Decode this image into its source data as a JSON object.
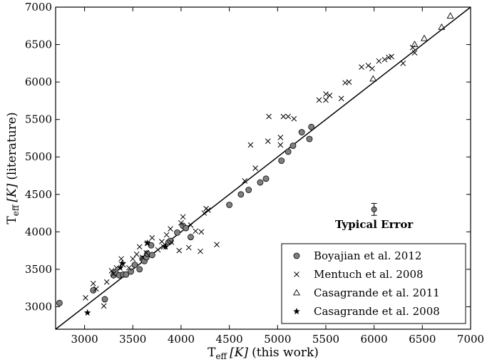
{
  "chart_data": {
    "type": "scatter",
    "xlabel": "T_eff [K] (this work)",
    "ylabel": "T_eff [K] (literature)",
    "xlabel_parts": {
      "T": "T",
      "sub": "eff",
      "unit": "[K]",
      "rest": "(this work)"
    },
    "ylabel_parts": {
      "T": "T",
      "sub": "eff",
      "unit": "[K]",
      "rest": "(literature)"
    },
    "xlim": [
      2700,
      7000
    ],
    "ylim": [
      2700,
      7000
    ],
    "xticks": [
      3000,
      3500,
      4000,
      4500,
      5000,
      5500,
      6000,
      6500,
      7000
    ],
    "yticks": [
      3000,
      3500,
      4000,
      4500,
      5000,
      5500,
      6000,
      6500,
      7000
    ],
    "legend_position": "lower-right",
    "one_to_one_line": true,
    "series": [
      {
        "name": "Boyajian et al. 2012",
        "marker": "circle",
        "color": "#808080",
        "points": [
          [
            2740,
            3050
          ],
          [
            3090,
            3220
          ],
          [
            3210,
            3100
          ],
          [
            3300,
            3420
          ],
          [
            3320,
            3460
          ],
          [
            3360,
            3420
          ],
          [
            3400,
            3430
          ],
          [
            3430,
            3430
          ],
          [
            3480,
            3470
          ],
          [
            3520,
            3560
          ],
          [
            3570,
            3500
          ],
          [
            3600,
            3640
          ],
          [
            3620,
            3610
          ],
          [
            3640,
            3660
          ],
          [
            3650,
            3710
          ],
          [
            3700,
            3690
          ],
          [
            3690,
            3820
          ],
          [
            3870,
            3860
          ],
          [
            3890,
            3880
          ],
          [
            3960,
            3990
          ],
          [
            4020,
            4080
          ],
          [
            4050,
            4050
          ],
          [
            4100,
            3930
          ],
          [
            4500,
            4360
          ],
          [
            4620,
            4500
          ],
          [
            4700,
            4560
          ],
          [
            4820,
            4660
          ],
          [
            4880,
            4710
          ],
          [
            5040,
            4950
          ],
          [
            5110,
            5070
          ],
          [
            5160,
            5150
          ],
          [
            5250,
            5330
          ],
          [
            5330,
            5240
          ],
          [
            5350,
            5400
          ]
        ]
      },
      {
        "name": "Mentuch et al. 2008",
        "marker": "x",
        "color": "#000000",
        "points": [
          [
            3010,
            3120
          ],
          [
            3090,
            3310
          ],
          [
            3120,
            3240
          ],
          [
            3200,
            3010
          ],
          [
            3230,
            3330
          ],
          [
            3280,
            3480
          ],
          [
            3300,
            3440
          ],
          [
            3330,
            3520
          ],
          [
            3380,
            3640
          ],
          [
            3400,
            3560
          ],
          [
            3460,
            3520
          ],
          [
            3500,
            3640
          ],
          [
            3540,
            3700
          ],
          [
            3570,
            3800
          ],
          [
            3600,
            3660
          ],
          [
            3640,
            3720
          ],
          [
            3650,
            3850
          ],
          [
            3700,
            3920
          ],
          [
            3760,
            3760
          ],
          [
            3800,
            3870
          ],
          [
            3820,
            3800
          ],
          [
            3850,
            3960
          ],
          [
            3890,
            4040
          ],
          [
            3900,
            3860
          ],
          [
            3980,
            3750
          ],
          [
            4000,
            4120
          ],
          [
            4020,
            4200
          ],
          [
            4080,
            3790
          ],
          [
            4100,
            4090
          ],
          [
            4150,
            4010
          ],
          [
            4200,
            3740
          ],
          [
            4210,
            4000
          ],
          [
            4240,
            4250
          ],
          [
            4260,
            4310
          ],
          [
            4280,
            4290
          ],
          [
            4370,
            3830
          ],
          [
            4660,
            4680
          ],
          [
            4720,
            5160
          ],
          [
            4770,
            4850
          ],
          [
            4900,
            5210
          ],
          [
            4910,
            5540
          ],
          [
            5030,
            5160
          ],
          [
            5030,
            5260
          ],
          [
            5060,
            5540
          ],
          [
            5110,
            5540
          ],
          [
            5170,
            5510
          ],
          [
            5430,
            5760
          ],
          [
            5500,
            5840
          ],
          [
            5500,
            5760
          ],
          [
            5540,
            5820
          ],
          [
            5660,
            5780
          ],
          [
            5700,
            5990
          ],
          [
            5740,
            6000
          ],
          [
            5870,
            6200
          ],
          [
            5940,
            6220
          ],
          [
            5980,
            6180
          ],
          [
            6050,
            6280
          ],
          [
            6110,
            6300
          ],
          [
            6150,
            6330
          ],
          [
            6180,
            6340
          ],
          [
            6300,
            6250
          ],
          [
            6400,
            6460
          ],
          [
            6420,
            6390
          ]
        ]
      },
      {
        "name": "Casagrande et al. 2011",
        "marker": "triangle",
        "color": "#000000",
        "points": [
          [
            5990,
            6040
          ],
          [
            6420,
            6500
          ],
          [
            6520,
            6580
          ],
          [
            6700,
            6730
          ],
          [
            6790,
            6880
          ]
        ]
      },
      {
        "name": "Casagrande et al. 2008",
        "marker": "star",
        "color": "#000000",
        "points": [
          [
            3030,
            2920
          ],
          [
            3370,
            3520
          ],
          [
            3390,
            3580
          ],
          [
            3650,
            3850
          ],
          [
            3840,
            3800
          ]
        ]
      }
    ],
    "typical_error": {
      "label": "Typical Error",
      "x": 6000,
      "y": 4300,
      "yerr": 80
    }
  }
}
